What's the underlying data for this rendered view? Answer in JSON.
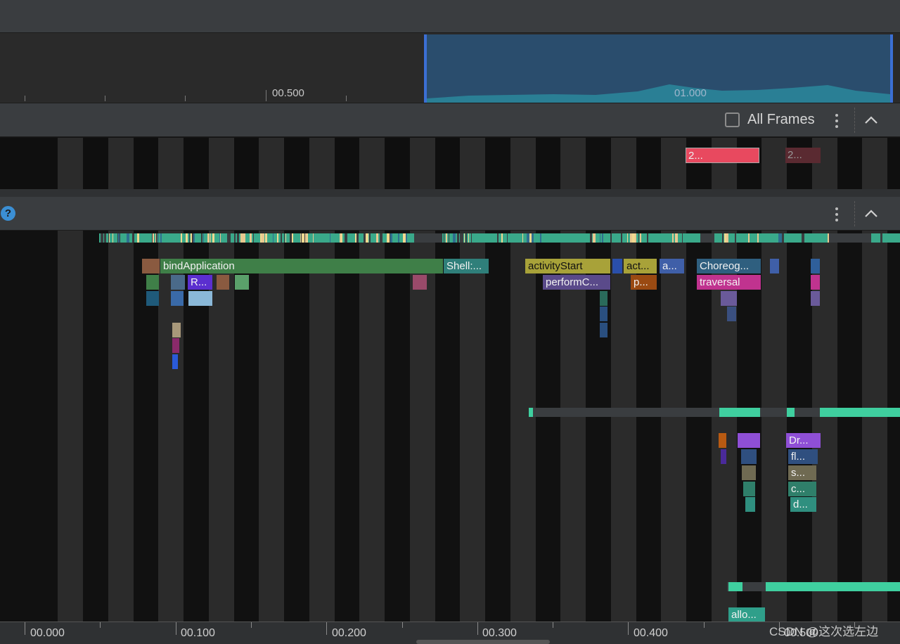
{
  "overview": {
    "tick_labels": [
      {
        "text": "00.500"
      },
      {
        "text": "01.000"
      }
    ]
  },
  "frames_header": {
    "checkbox_label": "All Frames",
    "checked": false
  },
  "frames": [
    {
      "label": "2...",
      "color": "#e8495f"
    },
    {
      "label": "2...",
      "color": "#5a2a31"
    }
  ],
  "thread_slices": {
    "main": [
      {
        "label": "bindApplication",
        "color": "#3f7f48"
      },
      {
        "label": "Shell:...",
        "color": "#2f7f7a"
      },
      {
        "label": "activityStart",
        "color": "#a8a239"
      },
      {
        "label": "act...",
        "color": "#a8a239"
      },
      {
        "label": "a...",
        "color": "#3f5fa8"
      },
      {
        "label": "Choreog...",
        "color": "#2f5f7f"
      },
      {
        "label": "R...",
        "color": "#5b2fcf"
      },
      {
        "label": "performC...",
        "color": "#5a4a8a"
      },
      {
        "label": "p...",
        "color": "#9a4a12"
      },
      {
        "label": "traversal",
        "color": "#c0338f"
      }
    ],
    "render": [
      {
        "label": "Dr...",
        "color": "#8f4fd6"
      },
      {
        "label": "fl...",
        "color": "#2f4f7f"
      },
      {
        "label": "s...",
        "color": "#6f6a52"
      },
      {
        "label": "c...",
        "color": "#2f7f6a"
      },
      {
        "label": "d...",
        "color": "#2f8f7f"
      }
    ],
    "other": [
      {
        "label": "allo...",
        "color": "#2f9f8a"
      }
    ]
  },
  "axis": {
    "tick_labels": [
      "00.000",
      "00.100",
      "00.200",
      "00.300",
      "00.400",
      "00.500"
    ]
  },
  "watermark": "CSDN @这次选左边"
}
